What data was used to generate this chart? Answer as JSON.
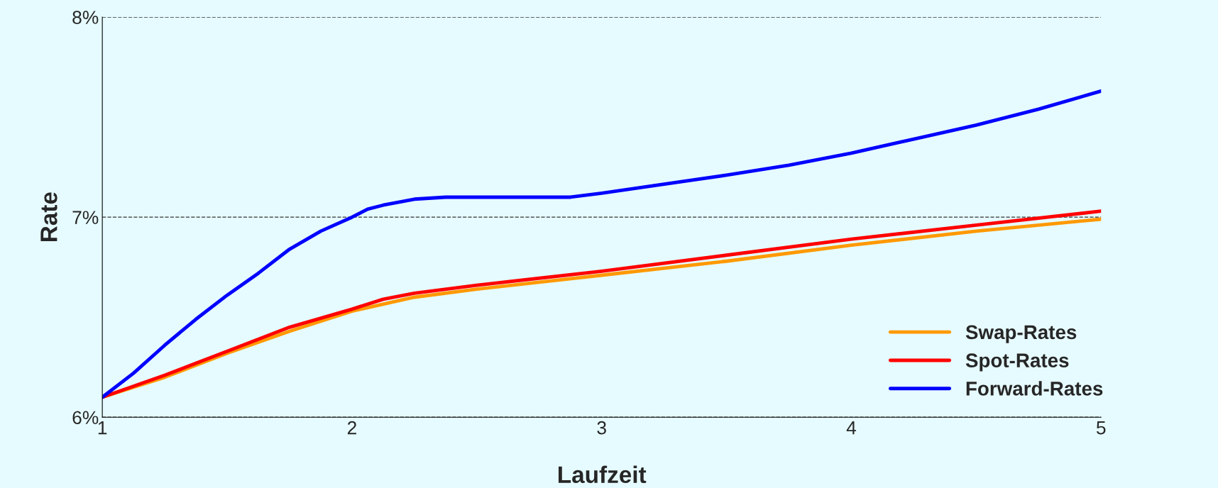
{
  "chart_data": {
    "type": "line",
    "xlabel": "Laufzeit",
    "ylabel": "Rate",
    "xlim": [
      1,
      5
    ],
    "xticks": [
      1,
      2,
      3,
      4,
      5
    ],
    "ylim": [
      6,
      8
    ],
    "yticks": [
      {
        "value": 6,
        "label": "6%"
      },
      {
        "value": 7,
        "label": "7%"
      },
      {
        "value": 8,
        "label": "8%"
      }
    ],
    "grid": "y",
    "legend": "bottom right",
    "marker": "none",
    "line_style": "solid",
    "series": [
      {
        "name": "Swap-Rates",
        "color": "#ff9900",
        "x": [
          1,
          1.25,
          1.5,
          1.75,
          2,
          2.25,
          2.5,
          3,
          3.5,
          4,
          4.5,
          5
        ],
        "values": [
          6.1,
          6.2,
          6.32,
          6.43,
          6.53,
          6.6,
          6.64,
          6.71,
          6.78,
          6.86,
          6.93,
          6.99
        ]
      },
      {
        "name": "Spot-Rates",
        "color": "#ff0000",
        "x": [
          1,
          1.25,
          1.5,
          1.75,
          2,
          2.125,
          2.25,
          2.5,
          3,
          3.5,
          4,
          4.5,
          5
        ],
        "values": [
          6.1,
          6.21,
          6.33,
          6.45,
          6.54,
          6.59,
          6.62,
          6.66,
          6.73,
          6.81,
          6.89,
          6.96,
          7.03
        ]
      },
      {
        "name": "Forward-Rates",
        "color": "#0000ff",
        "x": [
          1,
          1.125,
          1.25,
          1.375,
          1.5,
          1.625,
          1.75,
          1.875,
          2,
          2.0625,
          2.125,
          2.25,
          2.375,
          2.875,
          3,
          3.5,
          3.75,
          4,
          4.25,
          4.5,
          4.75,
          5
        ],
        "values": [
          6.1,
          6.22,
          6.36,
          6.49,
          6.61,
          6.72,
          6.84,
          6.93,
          7.0,
          7.04,
          7.06,
          7.09,
          7.1,
          7.1,
          7.12,
          7.21,
          7.26,
          7.32,
          7.39,
          7.46,
          7.54,
          7.63
        ]
      }
    ]
  }
}
